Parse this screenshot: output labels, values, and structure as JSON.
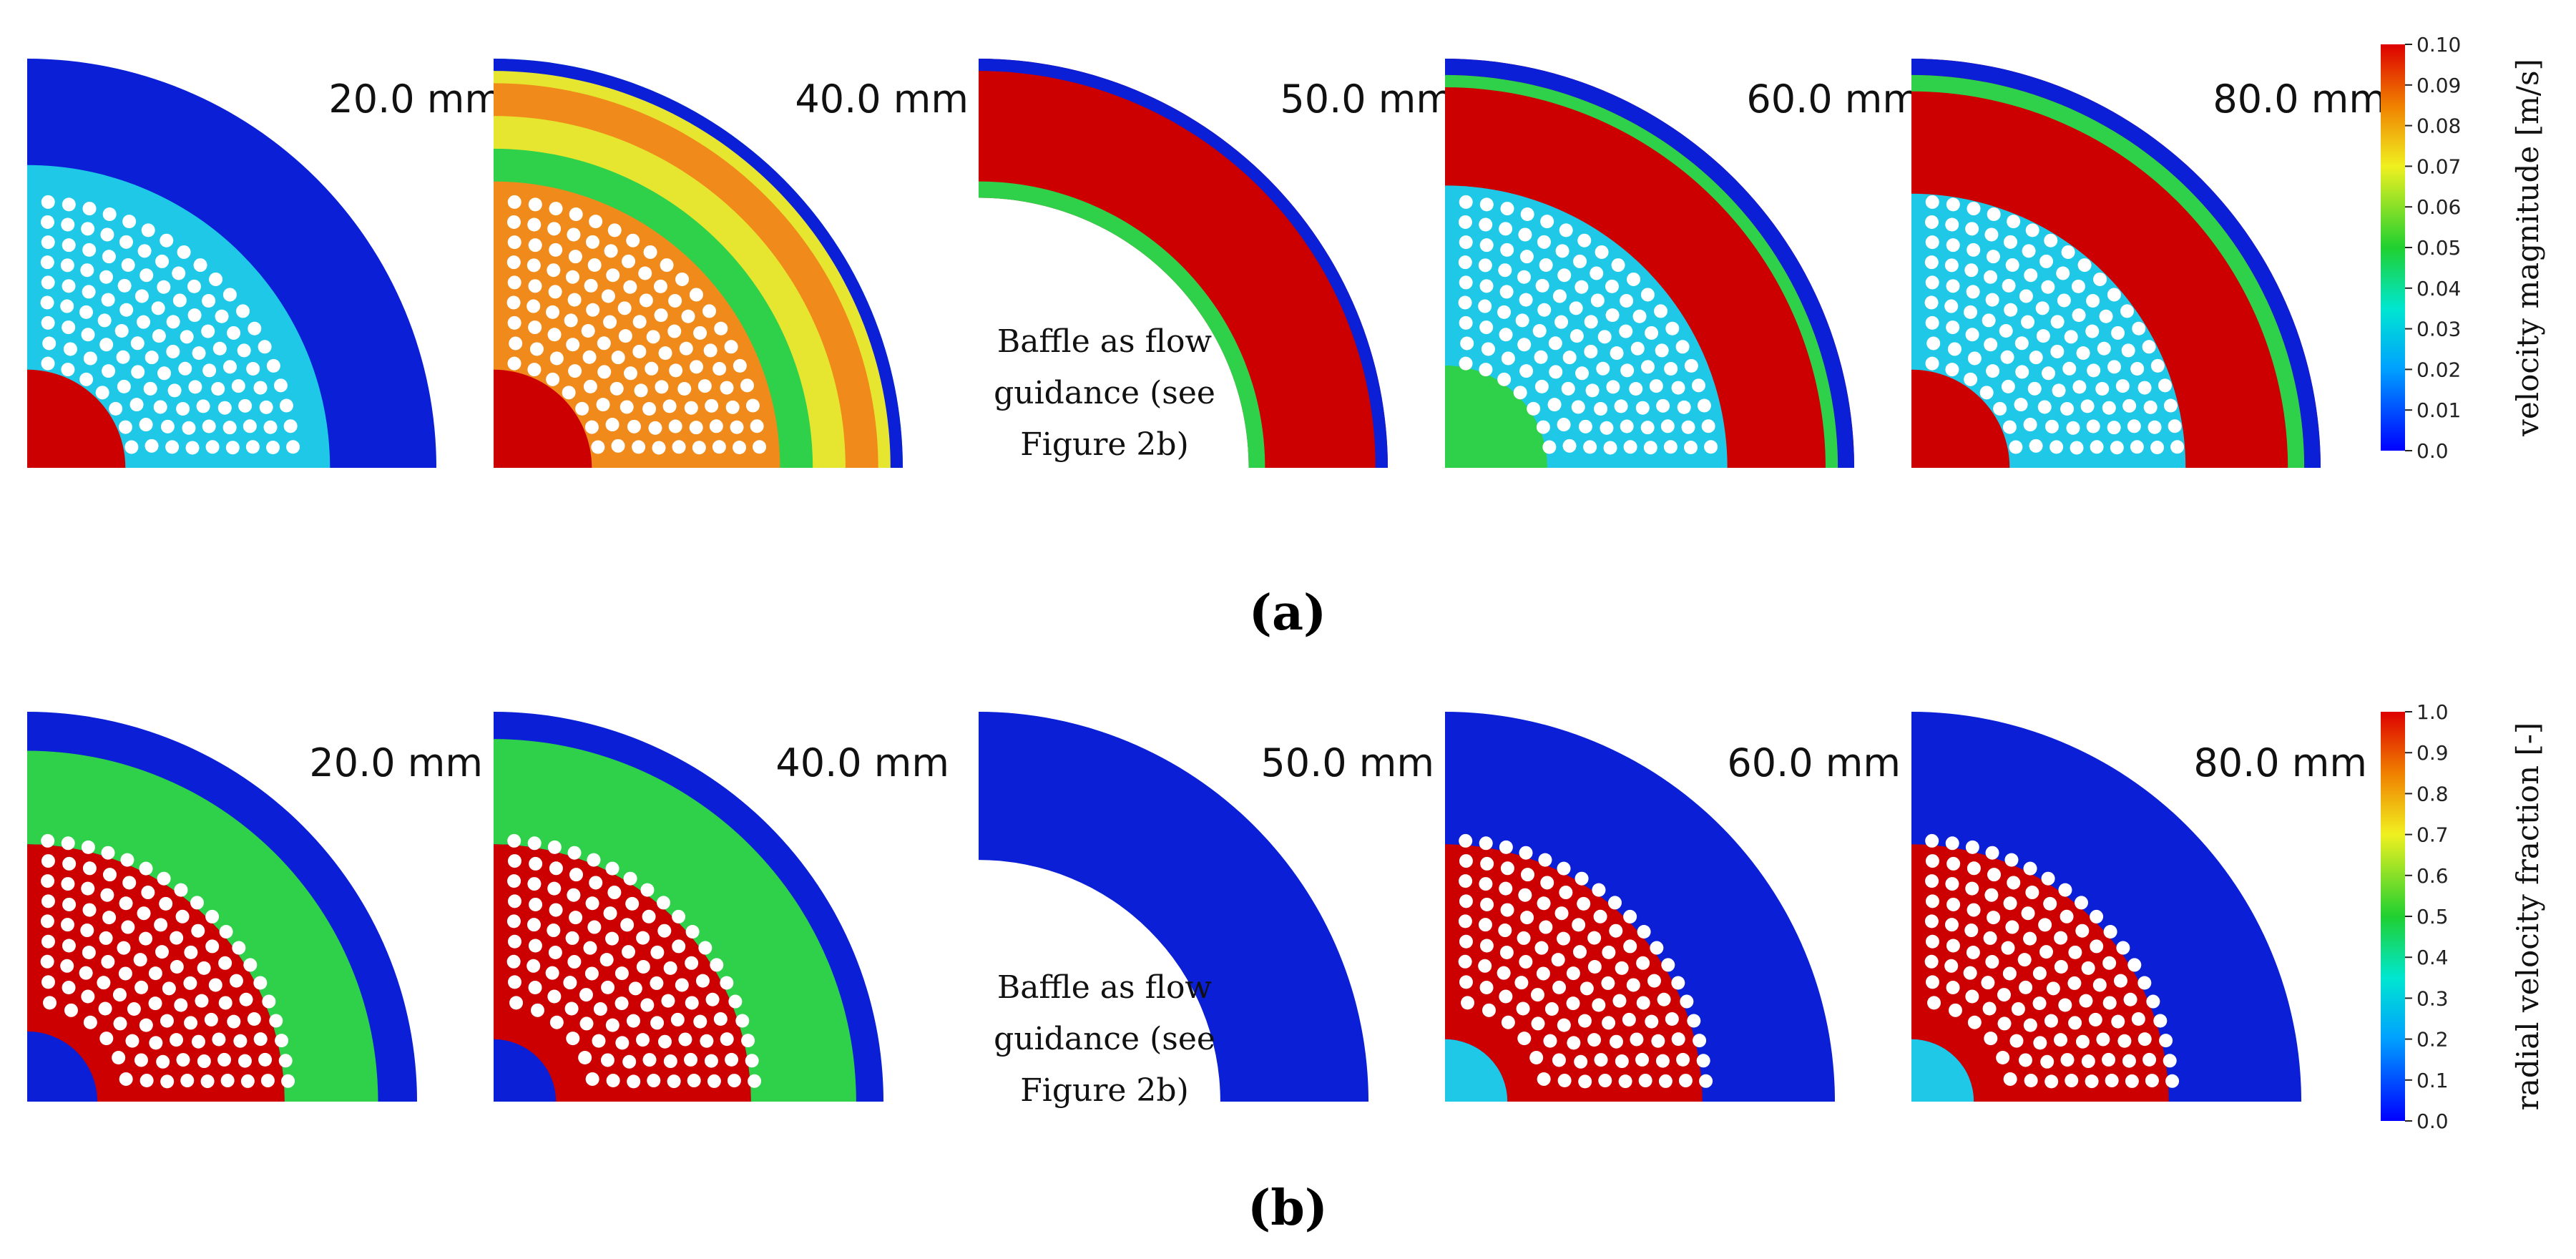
{
  "panels": [
    {
      "label": "(a)",
      "colorbar": {
        "title": "velocity magnitude [m/s]",
        "ticks": [
          "0.10",
          "0.09",
          "0.08",
          "0.07",
          "0.06",
          "0.05",
          "0.04",
          "0.03",
          "0.02",
          "0.01",
          "0.0"
        ]
      },
      "plots": [
        {
          "distance": "20.0 mm"
        },
        {
          "distance": "40.0 mm"
        },
        {
          "distance": "50.0 mm",
          "note": [
            "Baffle as flow",
            "guidance (see",
            "Figure 2b)"
          ]
        },
        {
          "distance": "60.0 mm"
        },
        {
          "distance": "80.0 mm"
        }
      ]
    },
    {
      "label": "(b)",
      "colorbar": {
        "title": "radial velocity fraction [-]",
        "ticks": [
          "1.0",
          "0.9",
          "0.8",
          "0.7",
          "0.6",
          "0.5",
          "0.4",
          "0.3",
          "0.2",
          "0.1",
          "0.0"
        ]
      },
      "plots": [
        {
          "distance": "20.0 mm"
        },
        {
          "distance": "40.0 mm"
        },
        {
          "distance": "50.0 mm",
          "note": [
            "Baffle as flow",
            "guidance (see",
            "Figure 2b)"
          ]
        },
        {
          "distance": "60.0 mm"
        },
        {
          "distance": "80.0 mm"
        }
      ]
    }
  ],
  "colors": {
    "blue": "#0a1fd6",
    "cyan": "#1fc8e6",
    "green": "#2fd14a",
    "yellow": "#e6e630",
    "orange": "#f08a1a",
    "red": "#cc0000"
  }
}
